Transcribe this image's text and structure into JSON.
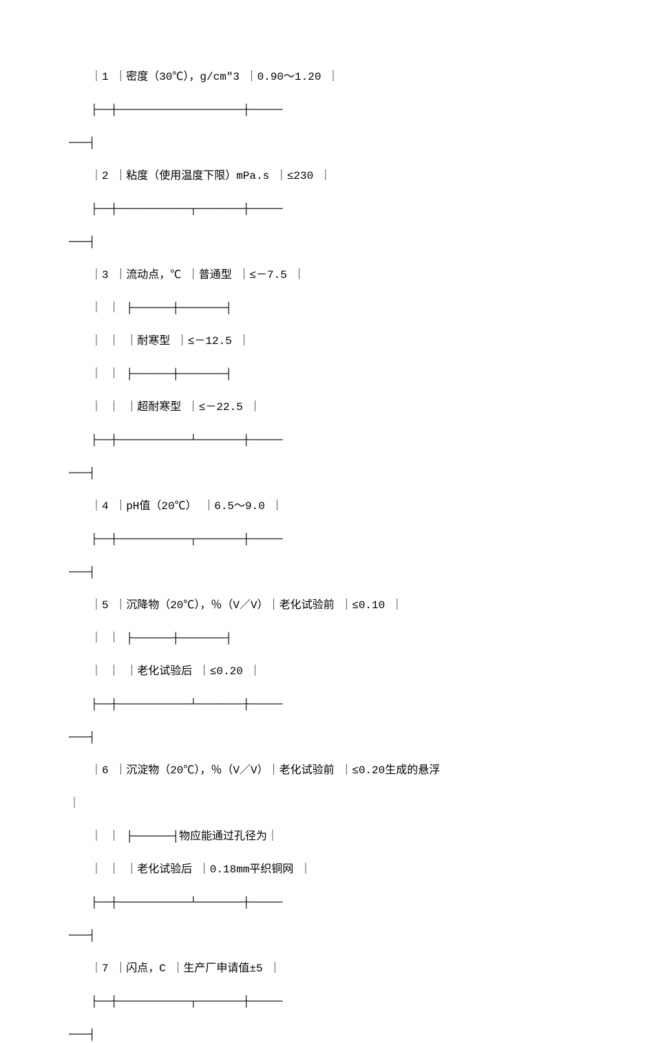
{
  "rows": [
    {
      "num": "1",
      "item": "密度（30℃），g/cm\"3",
      "spec": "0.90～1.20"
    },
    {
      "num": "2",
      "item": "粘度（使用温度下限）mPa.s",
      "spec": "≤230"
    },
    {
      "num": "3",
      "item": "流动点，℃",
      "sub": [
        {
          "label": "普通型",
          "spec": "≤－7.5"
        },
        {
          "label": "耐寒型",
          "spec": "≤－12.5"
        },
        {
          "label": "超耐寒型",
          "spec": "≤－22.5"
        }
      ]
    },
    {
      "num": "4",
      "item": "pH值（20℃）",
      "spec": "6.5～9.0"
    },
    {
      "num": "5",
      "item": "沉降物（20℃），％（V／V）",
      "sub": [
        {
          "label": "老化试验前",
          "spec": "≤0.10"
        },
        {
          "label": "老化试验后",
          "spec": "≤0.20"
        }
      ]
    },
    {
      "num": "6",
      "item": "沉淀物（20℃），％（V／V）",
      "sub": [
        {
          "label": "老化试验前",
          "spec": "≤0.20生成的悬浮"
        },
        {
          "label_extra": "物应能通过孔径为"
        },
        {
          "label": "老化试验后",
          "spec": "0.18mm平织铜网"
        }
      ]
    },
    {
      "num": "7",
      "item": "闪点，C",
      "spec": "生产厂申请值±5"
    }
  ],
  "lines": {
    "r1": "　　｜1 ｜密度（30℃），g/cm\"3 ｜0.90～1.20 ｜",
    "sep_long": "　　├──┼───────────────────┼─────",
    "sep_tail": "───┤",
    "r2": "　　｜2 ｜粘度（使用温度下限）mPa.s ｜≤230 ｜",
    "sep_mid": "　　├──┼───────────┬───────┼─────",
    "r3a": "　　｜3 ｜流动点，℃ ｜普通型 ｜≤－7.5 ｜",
    "sub_sep": "　　｜ ｜ ├──────┼───────┤",
    "r3b": "　　｜ ｜ ｜耐寒型 ｜≤－12.5 ｜",
    "r3c": "　　｜ ｜ ｜超耐寒型 ｜≤－22.5 ｜",
    "sep_mid2": "　　├──┼───────────┴───────┼─────",
    "r4": "　　｜4 ｜pH值（20℃） ｜6.5～9.0 ｜",
    "r5a": "　　｜5 ｜沉降物（20℃），％（V／V）｜老化试验前 ｜≤0.10 ｜",
    "r5b": "　　｜ ｜ ｜老化试验后 ｜≤0.20 ｜",
    "r6a": "　　｜6 ｜沉淀物（20℃），％（V／V）｜老化试验前 ｜≤0.20生成的悬浮",
    "r6a_tail": "｜",
    "r6mid": "　　｜ ｜ ├──────┤物应能通过孔径为｜",
    "r6b": "　　｜ ｜ ｜老化试验后 ｜0.18mm平织铜网 ｜",
    "r7": "　　｜7 ｜闪点，C ｜生产厂申请值±5 ｜"
  }
}
